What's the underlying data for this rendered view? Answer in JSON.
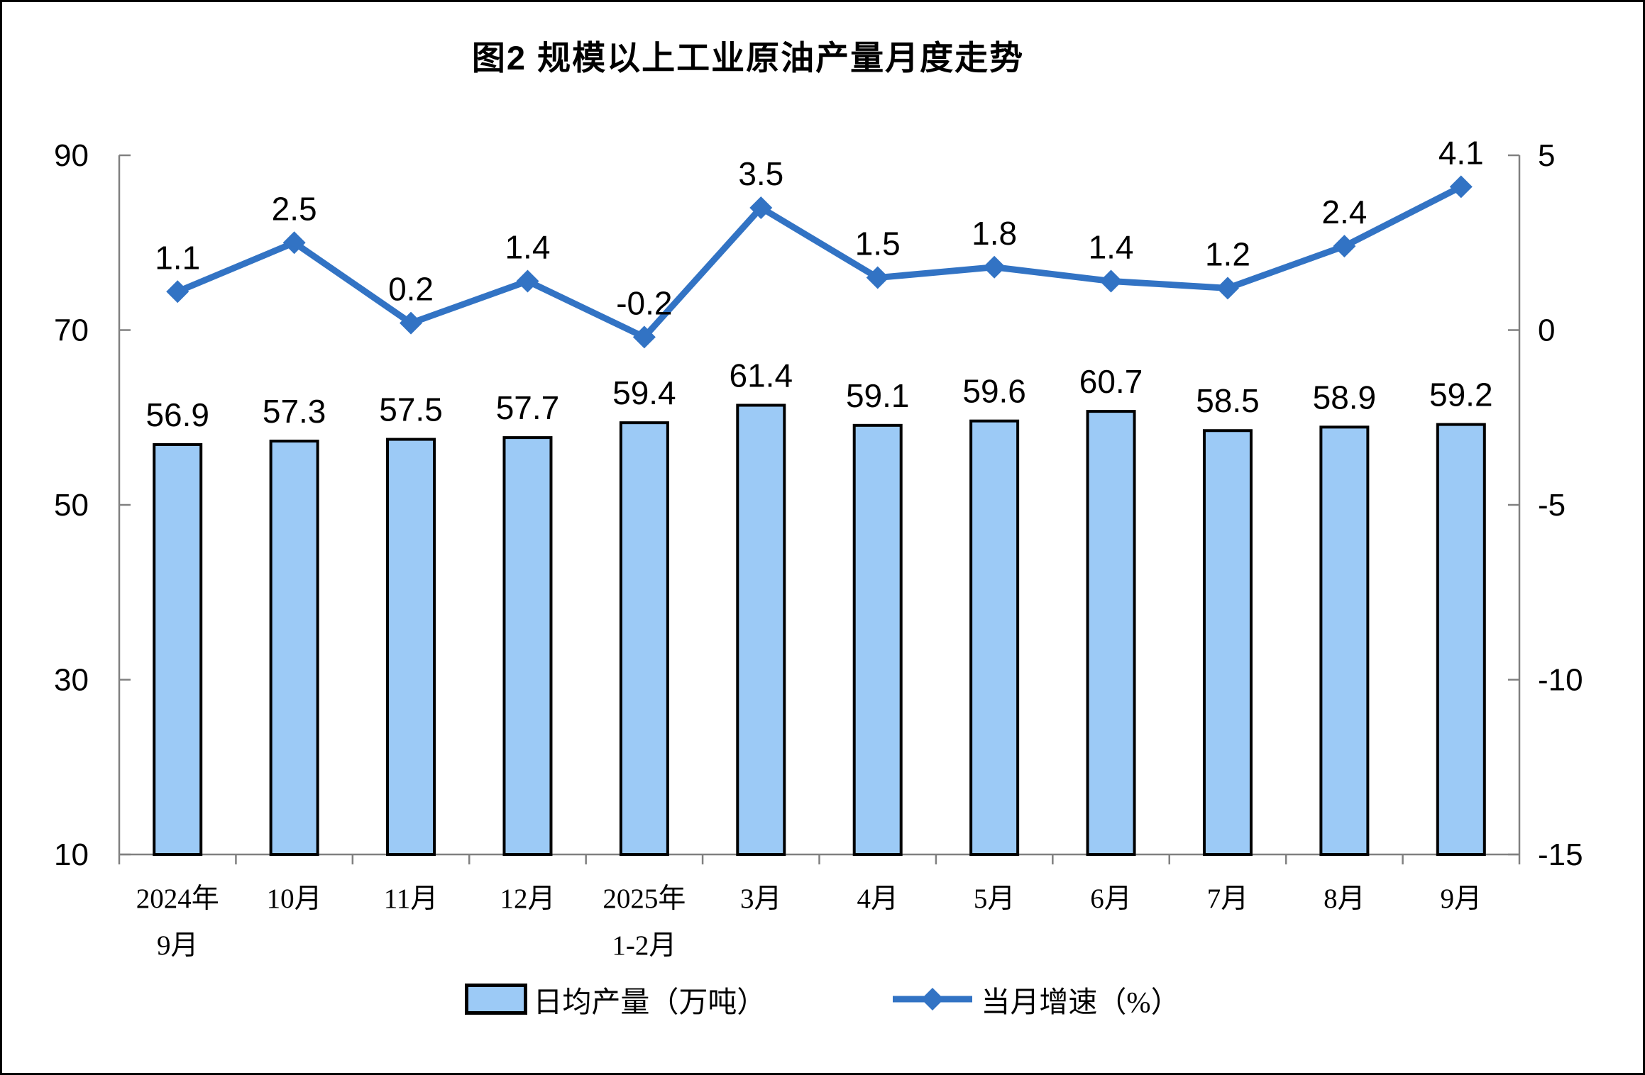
{
  "chart_data": {
    "type": "bar",
    "combo": "bar+line dual axis",
    "title": "图2 规模以上工业原油产量月度走势",
    "categories": [
      "2024年9月",
      "10月",
      "11月",
      "12月",
      "2025年1-2月",
      "3月",
      "4月",
      "5月",
      "6月",
      "7月",
      "8月",
      "9月"
    ],
    "category_label_lines": [
      [
        "2024年",
        "9月"
      ],
      [
        "10月"
      ],
      [
        "11月"
      ],
      [
        "12月"
      ],
      [
        "2025年",
        "1-2月"
      ],
      [
        "3月"
      ],
      [
        "4月"
      ],
      [
        "5月"
      ],
      [
        "6月"
      ],
      [
        "7月"
      ],
      [
        "8月"
      ],
      [
        "9月"
      ]
    ],
    "series": [
      {
        "name": "日均产量（万吨）",
        "type": "bar",
        "axis": "left",
        "values": [
          56.9,
          57.3,
          57.5,
          57.7,
          59.4,
          61.4,
          59.1,
          59.6,
          60.7,
          58.5,
          58.9,
          59.2
        ]
      },
      {
        "name": "当月增速（%）",
        "type": "line",
        "axis": "right",
        "values": [
          1.1,
          2.5,
          0.2,
          1.4,
          -0.2,
          3.5,
          1.5,
          1.8,
          1.4,
          1.2,
          2.4,
          4.1
        ]
      }
    ],
    "left_axis": {
      "min": 10,
      "max": 90,
      "ticks": [
        10,
        30,
        50,
        70,
        90
      ]
    },
    "right_axis": {
      "min": -15,
      "max": 5,
      "ticks": [
        -15,
        -10,
        -5,
        0,
        5
      ]
    },
    "grid": false,
    "legend_position": "bottom",
    "colors": {
      "bar_fill": "#9CCAF6",
      "bar_border": "#000000",
      "line": "#3273C4",
      "axis": "#808080",
      "text": "#000000"
    }
  }
}
